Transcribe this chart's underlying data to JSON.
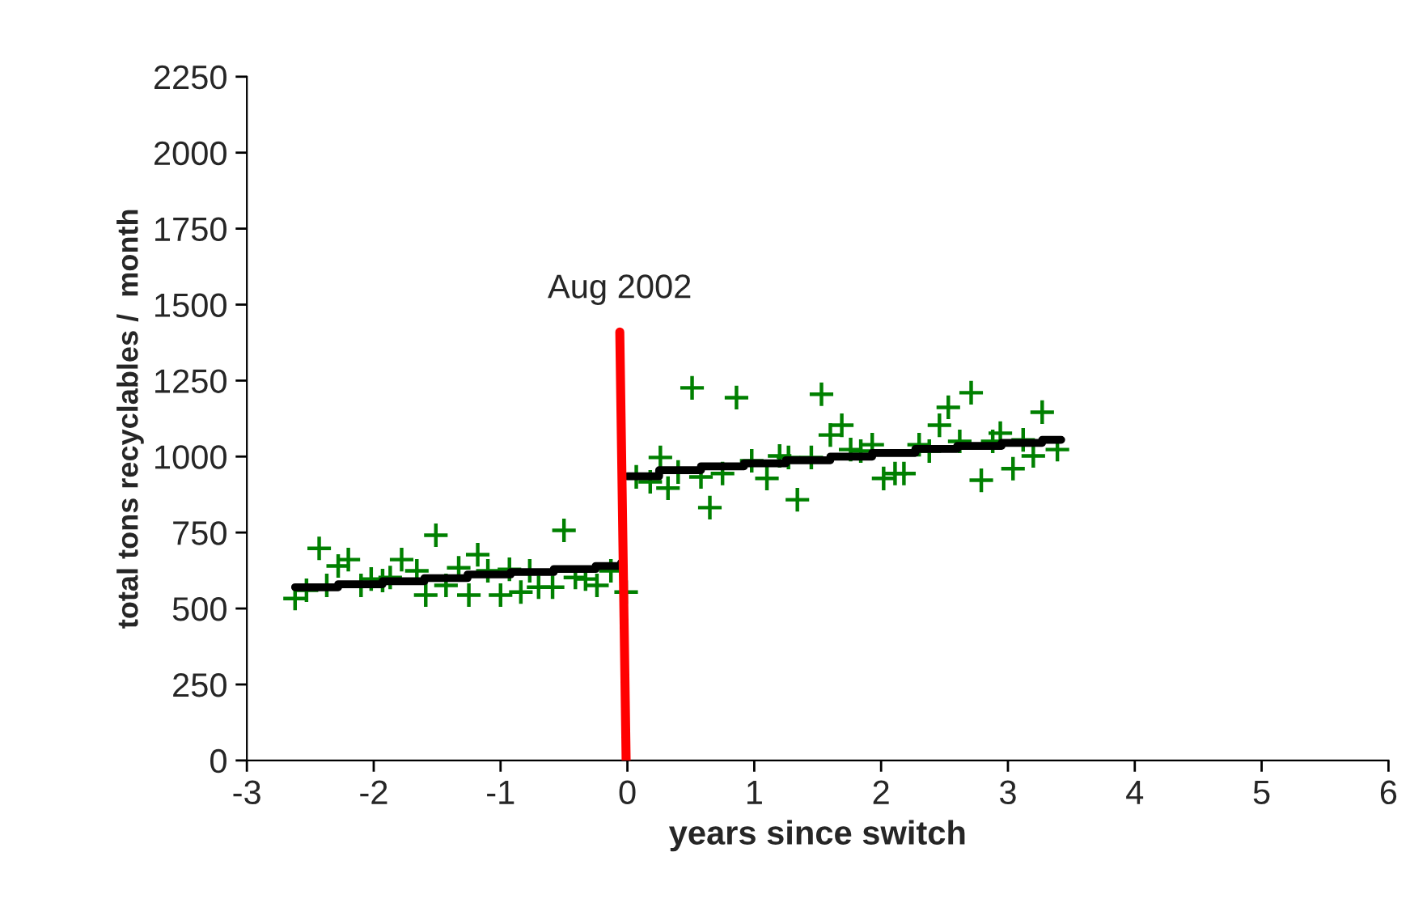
{
  "chart_data": {
    "type": "scatter",
    "xlabel": "years since switch",
    "ylabel": "total tons recyclables /  month",
    "xlim": [
      -3,
      6
    ],
    "xticks": [
      -3,
      -2,
      -1,
      0,
      1,
      2,
      3,
      4,
      5,
      6
    ],
    "ylim": [
      0,
      2250
    ],
    "yticks": [
      0,
      250,
      500,
      750,
      1000,
      1250,
      1500,
      1750,
      2000,
      2250
    ],
    "grid": false,
    "legend": false,
    "annotations": [
      {
        "text": "Aug 2002",
        "x": -0.06,
        "y": 1410
      }
    ],
    "series": [
      {
        "marker": "cross",
        "color": "#008000",
        "x": [
          -2.62,
          -2.53,
          -2.43,
          -2.37,
          -2.28,
          -2.2,
          -2.1,
          -2.02,
          -1.93,
          -1.87,
          -1.78,
          -1.66,
          -1.59,
          -1.51,
          -1.43,
          -1.33,
          -1.25,
          -1.18,
          -1.1,
          -1.0,
          -0.93,
          -0.84,
          -0.77,
          -0.7,
          -0.59,
          -0.5,
          -0.41,
          -0.33,
          -0.24,
          -0.13,
          -0.01,
          0.07,
          0.18,
          0.26,
          0.32,
          0.4,
          0.51,
          0.58,
          0.65,
          0.75,
          0.86,
          0.98,
          1.1,
          1.2,
          1.27,
          1.34,
          1.45,
          1.53,
          1.6,
          1.69,
          1.76,
          1.84,
          1.93,
          2.02,
          2.11,
          2.18,
          2.3,
          2.38,
          2.46,
          2.53,
          2.62,
          2.71,
          2.79,
          2.88,
          2.94,
          3.04,
          3.12,
          3.2,
          3.27,
          3.39
        ],
        "values": [
          533,
          560,
          698,
          576,
          640,
          661,
          576,
          597,
          592,
          602,
          661,
          624,
          544,
          741,
          576,
          634,
          544,
          677,
          624,
          544,
          629,
          554,
          624,
          570,
          570,
          757,
          602,
          597,
          576,
          624,
          554,
          933,
          917,
          997,
          896,
          949,
          1226,
          933,
          832,
          944,
          1194,
          986,
          928,
          1002,
          997,
          858,
          997,
          1205,
          1071,
          1103,
          1023,
          1018,
          1039,
          928,
          944,
          944,
          1039,
          1018,
          1103,
          1162,
          1050,
          1210,
          922,
          1050,
          1077,
          960,
          1055,
          1002,
          1146,
          1023
        ]
      },
      {
        "type": "step",
        "color": "#000000",
        "x": [
          -2.62,
          -2.28,
          -1.93,
          -1.6,
          -1.26,
          -0.92,
          -0.58,
          -0.25,
          -0.05
        ],
        "values": [
          570,
          580,
          590,
          600,
          612,
          620,
          630,
          640,
          650
        ]
      },
      {
        "type": "step",
        "color": "#000000",
        "x": [
          0.0,
          0.25,
          0.58,
          0.92,
          1.25,
          1.6,
          1.93,
          2.27,
          2.6,
          2.95,
          3.27,
          3.42
        ],
        "values": [
          935,
          955,
          968,
          978,
          988,
          1000,
          1012,
          1025,
          1035,
          1045,
          1055,
          1055
        ]
      },
      {
        "type": "line",
        "color": "#ff0000",
        "x": [
          -0.06,
          -0.01
        ],
        "values": [
          1410,
          0
        ]
      }
    ]
  }
}
